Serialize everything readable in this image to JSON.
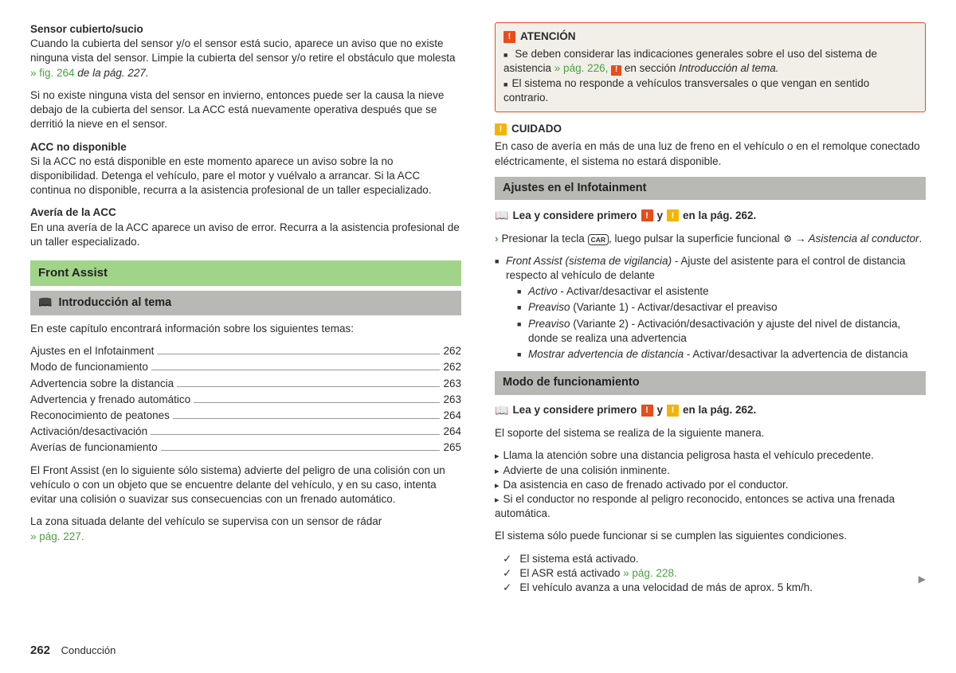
{
  "left": {
    "h1": "Sensor cubierto/sucio",
    "p1a": "Cuando la cubierta del sensor y/o el sensor está sucio, aparece un aviso que no existe ninguna vista del sensor. Limpie la cubierta del sensor y/o retire el obstáculo que molesta ",
    "p1link": "» fig. 264",
    "p1b": " de la pág. 227.",
    "p2": "Si no existe ninguna vista del sensor en invierno, entonces puede ser la causa la nieve debajo de la cubierta del sensor. La ACC está nuevamente operativa después que se derritió la nieve en el sensor.",
    "h2": "ACC no disponible",
    "p3": "Si la ACC no está disponible en este momento aparece un aviso sobre la no disponibilidad. Detenga el vehículo, pare el motor y vuélvalo a arrancar. Si la ACC continua no disponible, recurra a la asistencia profesional de un taller especializado.",
    "h3": "Avería de la ACC",
    "p4": "En una avería de la ACC aparece un aviso de error. Recurra a la asistencia profesional de un taller especializado.",
    "greenbar": "Front Assist",
    "graybar": "Introducción al tema",
    "p5": "En este capítulo encontrará información sobre los siguientes temas:",
    "toc": [
      {
        "label": "Ajustes en el Infotainment",
        "page": "262"
      },
      {
        "label": "Modo de funcionamiento",
        "page": "262"
      },
      {
        "label": "Advertencia sobre la distancia",
        "page": "263"
      },
      {
        "label": "Advertencia y frenado automático",
        "page": "263"
      },
      {
        "label": "Reconocimiento de peatones",
        "page": "264"
      },
      {
        "label": "Activación/desactivación",
        "page": "264"
      },
      {
        "label": "Averías de funcionamiento",
        "page": "265"
      }
    ],
    "p6": "El Front Assist (en lo siguiente sólo sistema) advierte del peligro de una colisión con un vehículo o con un objeto que se encuentre delante del vehículo, y en su caso, intenta evitar una colisión o suavizar sus consecuencias con un frenado automático.",
    "p7a": "La zona situada delante del vehículo se supervisa con un sensor de rádar ",
    "p7link": "» pág. 227"
  },
  "right": {
    "atencion": "ATENCIÓN",
    "at1a": "Se deben considerar las indicaciones generales sobre el uso del sistema de asistencia ",
    "at1link": "» pág. 226,",
    "at1b": " en sección ",
    "at1c": "Introducción al tema.",
    "at2": "El sistema no responde a vehículos transversales o que vengan en sentido contrario.",
    "cuidado": "CUIDADO",
    "cu1": "En caso de avería en más de una luz de freno en el vehículo o en el remolque conectado eléctricamente, el sistema no estará disponible.",
    "bar1": "Ajustes en el Infotainment",
    "read1a": "Lea y considere primero",
    "read1b": "y",
    "read1c": "en la pág. 262.",
    "press_a": "Presionar la tecla ",
    "press_car": "CAR",
    "press_b": ", luego pulsar la superficie funcional ",
    "press_c": "Asistencia al conductor",
    "li1": "Front Assist (sistema de vigilancia)",
    "li1b": " - Ajuste del asistente para el control de distancia respecto al vehículo de delante",
    "li1_1a": "Activo",
    "li1_1b": " - Activar/desactivar el asistente",
    "li1_2a": "Preaviso",
    "li1_2b": " (Variante 1) - Activar/desactivar el preaviso",
    "li1_3a": "Preaviso",
    "li1_3b": " (Variante 2) - Activación/desactivación y ajuste del nivel de distancia, donde se realiza una advertencia",
    "li1_4a": "Mostrar advertencia de distancia",
    "li1_4b": " - Activar/desactivar la advertencia de distancia",
    "bar2": "Modo de funcionamiento",
    "p_modo": "El soporte del sistema se realiza de la siguiente manera.",
    "m1": "Llama la atención sobre una distancia peligrosa hasta el vehículo precedente.",
    "m2": "Advierte de una colisión inminente.",
    "m3": "Da asistencia en caso de frenado activado por el conductor.",
    "m4": "Si el conductor no responde al peligro reconocido, entonces se activa una frenada automática.",
    "p_cond": "El sistema sólo puede funcionar si se cumplen las siguientes condiciones.",
    "c1": "El sistema está activado.",
    "c2a": "El ASR está activado ",
    "c2link": "» pág. 228",
    "c3": "El vehículo avanza a una velocidad de más de aprox. 5 km/h."
  },
  "footer": {
    "page": "262",
    "section": "Conducción"
  }
}
